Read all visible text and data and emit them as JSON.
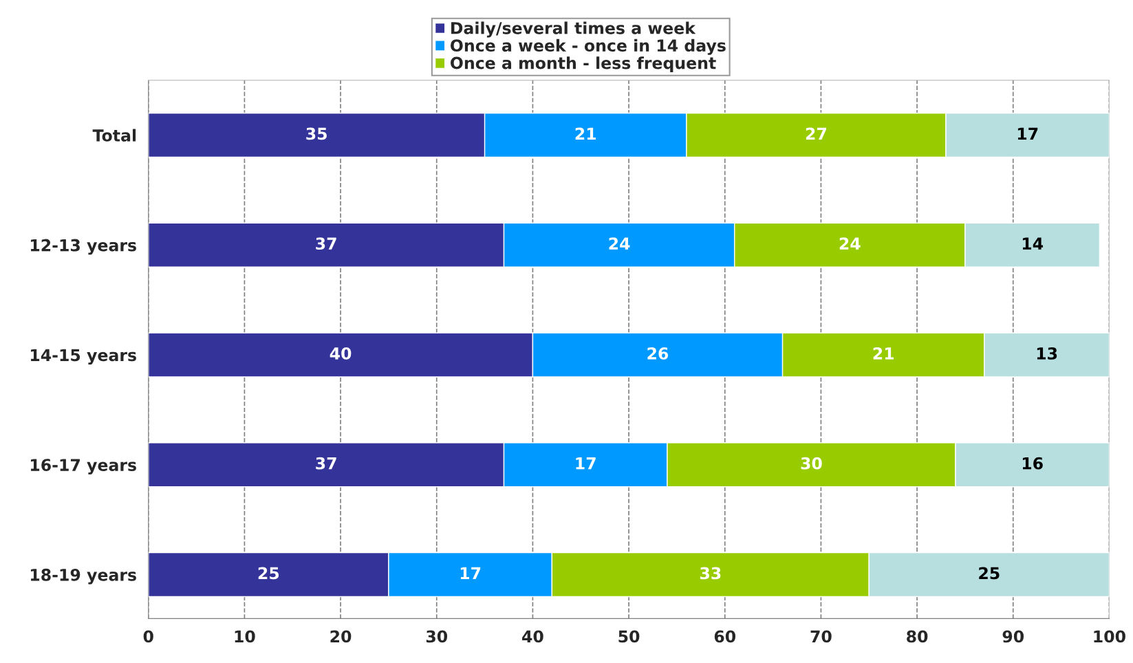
{
  "chart_data": {
    "type": "bar",
    "orientation": "horizontal",
    "stacked": true,
    "categories": [
      "Total",
      "12-13 years",
      "14-15 years",
      "16-17 years",
      "18-19 years"
    ],
    "series": [
      {
        "name": "Daily/several times a week",
        "color": "#333399",
        "values": [
          35,
          37,
          40,
          37,
          25
        ]
      },
      {
        "name": "Once a week - once in 14 days",
        "color": "#0099ff",
        "values": [
          21,
          24,
          26,
          17,
          17
        ]
      },
      {
        "name": "Once a month - less frequent",
        "color": "#99cc00",
        "values": [
          27,
          24,
          21,
          30,
          33
        ]
      },
      {
        "color": "#b7dfe0",
        "values": [
          17,
          14,
          13,
          16,
          25
        ]
      }
    ],
    "xlim": [
      0,
      100
    ],
    "xticks": [
      0,
      10,
      20,
      30,
      40,
      50,
      60,
      70,
      80,
      90,
      100
    ],
    "grid": "x",
    "legend": "top",
    "data_labels": true
  }
}
